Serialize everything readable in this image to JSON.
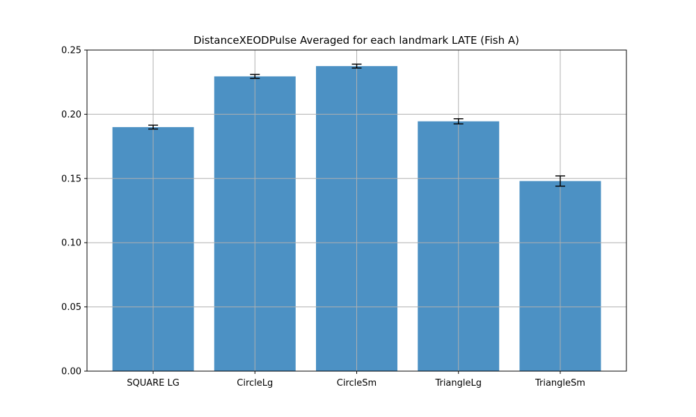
{
  "chart_data": {
    "type": "bar",
    "title": "DistanceXEODPulse Averaged for each landmark LATE (Fish A)",
    "xlabel": "",
    "ylabel": "",
    "categories": [
      "SQUARE LG",
      "CircleLg",
      "CircleSm",
      "TriangleLg",
      "TriangleSm"
    ],
    "values": [
      0.19,
      0.2295,
      0.2375,
      0.1945,
      0.148
    ],
    "errors": [
      0.0015,
      0.0015,
      0.0015,
      0.002,
      0.004
    ],
    "ylim": [
      0,
      0.25
    ],
    "yticks": [
      0.0,
      0.05,
      0.1,
      0.15,
      0.2,
      0.25
    ],
    "ytick_labels": [
      "0.00",
      "0.05",
      "0.10",
      "0.15",
      "0.20",
      "0.25"
    ],
    "grid": true,
    "legend": "none",
    "bar_color": "#4c91c4",
    "grid_color": "#b0b0b0",
    "error_color": "#000000"
  }
}
